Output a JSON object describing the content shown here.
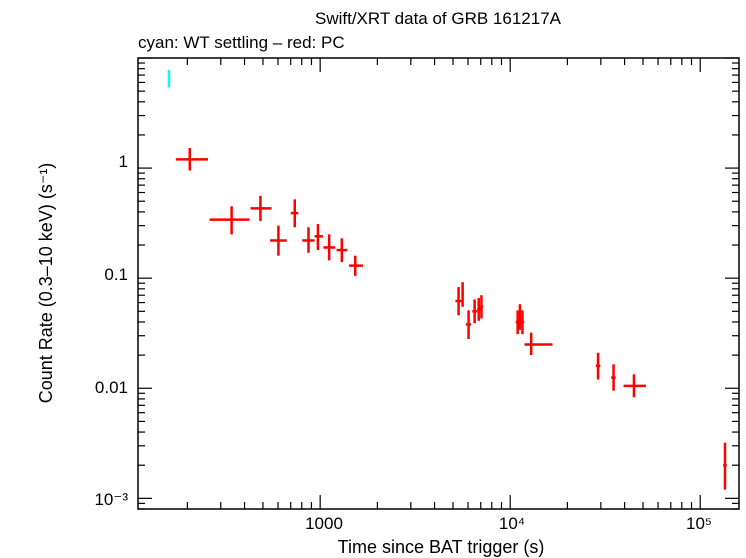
{
  "chart_data": {
    "type": "scatter",
    "title": "Swift/XRT data of GRB 161217A",
    "subtitle": "cyan: WT settling – red: PC",
    "xlabel": "Time since BAT trigger (s)",
    "ylabel": "Count Rate (0.3–10 keV) (s⁻¹)",
    "x_scale": "log",
    "y_scale": "log",
    "xlim": [
      110,
      160000
    ],
    "ylim": [
      0.0008,
      10
    ],
    "x_tick_labels": [
      "1000",
      "10⁴",
      "10⁵"
    ],
    "x_ticks": [
      1000,
      10000,
      100000
    ],
    "y_tick_labels": [
      "10⁻³",
      "0.01",
      "0.1",
      "1"
    ],
    "y_ticks": [
      0.001,
      0.01,
      0.1,
      1
    ],
    "series": [
      {
        "color": "#00ffff",
        "points": [
          {
            "x": 160,
            "xlo": 158,
            "xhi": 162,
            "y": 6.5,
            "ylo": 5.4,
            "yhi": 7.8
          }
        ]
      },
      {
        "color": "#ff0000",
        "points": [
          {
            "x": 206,
            "xlo": 174,
            "xhi": 257,
            "y": 1.2,
            "ylo": 0.95,
            "yhi": 1.52
          },
          {
            "x": 342,
            "xlo": 262,
            "xhi": 425,
            "y": 0.34,
            "ylo": 0.25,
            "yhi": 0.45
          },
          {
            "x": 485,
            "xlo": 430,
            "xhi": 555,
            "y": 0.43,
            "ylo": 0.33,
            "yhi": 0.56
          },
          {
            "x": 603,
            "xlo": 545,
            "xhi": 667,
            "y": 0.22,
            "ylo": 0.16,
            "yhi": 0.3
          },
          {
            "x": 735,
            "xlo": 700,
            "xhi": 767,
            "y": 0.39,
            "ylo": 0.29,
            "yhi": 0.52
          },
          {
            "x": 868,
            "xlo": 805,
            "xhi": 935,
            "y": 0.22,
            "ylo": 0.17,
            "yhi": 0.29
          },
          {
            "x": 973,
            "xlo": 935,
            "xhi": 1035,
            "y": 0.24,
            "ylo": 0.18,
            "yhi": 0.31
          },
          {
            "x": 1115,
            "xlo": 1040,
            "xhi": 1200,
            "y": 0.19,
            "ylo": 0.145,
            "yhi": 0.25
          },
          {
            "x": 1300,
            "xlo": 1220,
            "xhi": 1390,
            "y": 0.18,
            "ylo": 0.14,
            "yhi": 0.23
          },
          {
            "x": 1530,
            "xlo": 1420,
            "xhi": 1680,
            "y": 0.13,
            "ylo": 0.105,
            "yhi": 0.16
          },
          {
            "x": 5350,
            "xlo": 5150,
            "xhi": 5550,
            "y": 0.062,
            "ylo": 0.046,
            "yhi": 0.083
          },
          {
            "x": 5620,
            "xlo": 5560,
            "xhi": 5700,
            "y": 0.071,
            "ylo": 0.055,
            "yhi": 0.092
          },
          {
            "x": 6040,
            "xlo": 5850,
            "xhi": 6230,
            "y": 0.038,
            "ylo": 0.028,
            "yhi": 0.051
          },
          {
            "x": 6500,
            "xlo": 6320,
            "xhi": 6700,
            "y": 0.05,
            "ylo": 0.039,
            "yhi": 0.064
          },
          {
            "x": 6830,
            "xlo": 6700,
            "xhi": 6980,
            "y": 0.052,
            "ylo": 0.041,
            "yhi": 0.066
          },
          {
            "x": 7060,
            "xlo": 6950,
            "xhi": 7200,
            "y": 0.055,
            "ylo": 0.043,
            "yhi": 0.07
          },
          {
            "x": 10950,
            "xlo": 10700,
            "xhi": 11200,
            "y": 0.04,
            "ylo": 0.031,
            "yhi": 0.051
          },
          {
            "x": 11250,
            "xlo": 11100,
            "xhi": 11450,
            "y": 0.045,
            "ylo": 0.034,
            "yhi": 0.058
          },
          {
            "x": 11600,
            "xlo": 11400,
            "xhi": 11850,
            "y": 0.04,
            "ylo": 0.031,
            "yhi": 0.051
          },
          {
            "x": 12900,
            "xlo": 11900,
            "xhi": 16700,
            "y": 0.025,
            "ylo": 0.02,
            "yhi": 0.032
          },
          {
            "x": 29000,
            "xlo": 28200,
            "xhi": 29800,
            "y": 0.016,
            "ylo": 0.012,
            "yhi": 0.021
          },
          {
            "x": 35000,
            "xlo": 34000,
            "xhi": 35900,
            "y": 0.0125,
            "ylo": 0.0095,
            "yhi": 0.0165
          },
          {
            "x": 44800,
            "xlo": 39500,
            "xhi": 51800,
            "y": 0.0105,
            "ylo": 0.0083,
            "yhi": 0.0134
          },
          {
            "x": 135000,
            "xlo": 132000,
            "xhi": 138000,
            "y": 0.002,
            "ylo": 0.0012,
            "yhi": 0.0032
          }
        ]
      }
    ]
  }
}
